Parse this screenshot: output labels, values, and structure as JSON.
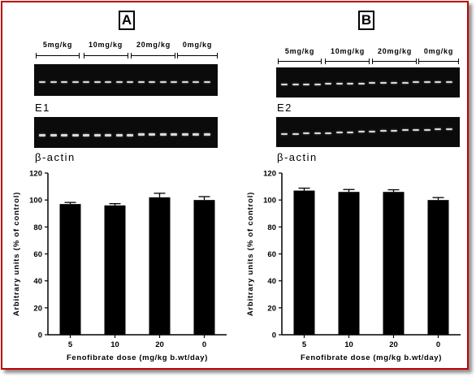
{
  "panels": {
    "A": {
      "letter": "A",
      "doses": [
        "5mg/kg",
        "10mg/kg",
        "20mg/kg",
        "0mg/kg"
      ],
      "gel_labels": [
        "E1",
        "β-actin"
      ]
    },
    "B": {
      "letter": "B",
      "doses": [
        "5mg/kg",
        "10mg/kg",
        "20mg/kg",
        "0mg/kg"
      ],
      "gel_labels": [
        "E2",
        "β-actin"
      ]
    }
  },
  "chart_data": [
    {
      "type": "bar",
      "panel": "A",
      "categories": [
        "5",
        "10",
        "20",
        "0"
      ],
      "values": [
        97,
        96,
        102,
        100
      ],
      "errors": [
        1.2,
        1.3,
        3.0,
        2.5
      ],
      "xlabel": "Fenofibrate dose (mg/kg b.wt/day)",
      "ylabel": "Arbitrary units (% of control)",
      "ylim": [
        0,
        120
      ],
      "yticks": [
        0,
        20,
        40,
        60,
        80,
        100,
        120
      ],
      "bar_color": "#000000"
    },
    {
      "type": "bar",
      "panel": "B",
      "categories": [
        "5",
        "10",
        "20",
        "0"
      ],
      "values": [
        107,
        106,
        106,
        100
      ],
      "errors": [
        1.8,
        1.8,
        1.6,
        1.8
      ],
      "xlabel": "Fenofibrate dose (mg/kg b.wt/day)",
      "ylabel": "Arbitrary units (% of control)",
      "ylim": [
        0,
        120
      ],
      "yticks": [
        0,
        20,
        40,
        60,
        80,
        100,
        120
      ],
      "bar_color": "#000000"
    }
  ]
}
